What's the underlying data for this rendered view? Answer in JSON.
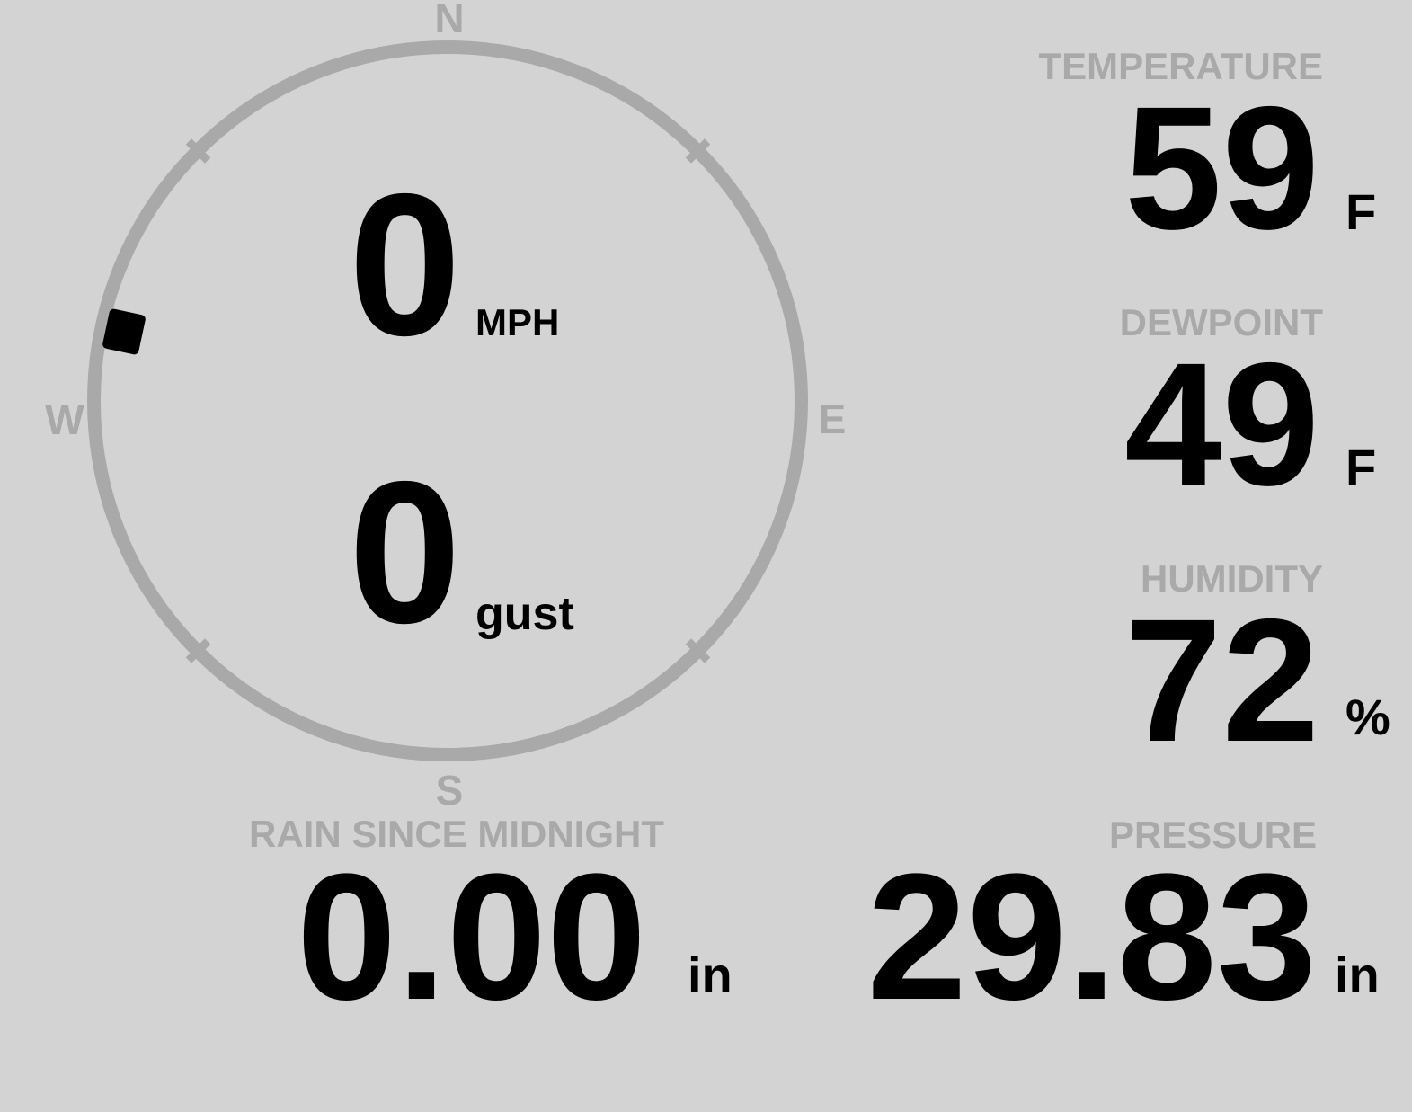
{
  "colors": {
    "background": "#d3d3d3",
    "muted_text": "#a9a9a9",
    "ring": "#a9a9a9",
    "value_text": "#000000"
  },
  "wind": {
    "speed": "0",
    "speed_unit": "MPH",
    "gust": "0",
    "gust_unit": "gust",
    "direction_deg": 282,
    "cardinals": {
      "n": "N",
      "e": "E",
      "s": "S",
      "w": "W"
    }
  },
  "stats": {
    "temperature": {
      "label": "TEMPERATURE",
      "value": "59",
      "unit": "F"
    },
    "dewpoint": {
      "label": "DEWPOINT",
      "value": "49",
      "unit": "F"
    },
    "humidity": {
      "label": "HUMIDITY",
      "value": "72",
      "unit": "%"
    },
    "pressure": {
      "label": "PRESSURE",
      "value": "29.83",
      "unit": "in"
    },
    "rain": {
      "label": "RAIN SINCE MIDNIGHT",
      "value": "0.00",
      "unit": "in"
    }
  }
}
